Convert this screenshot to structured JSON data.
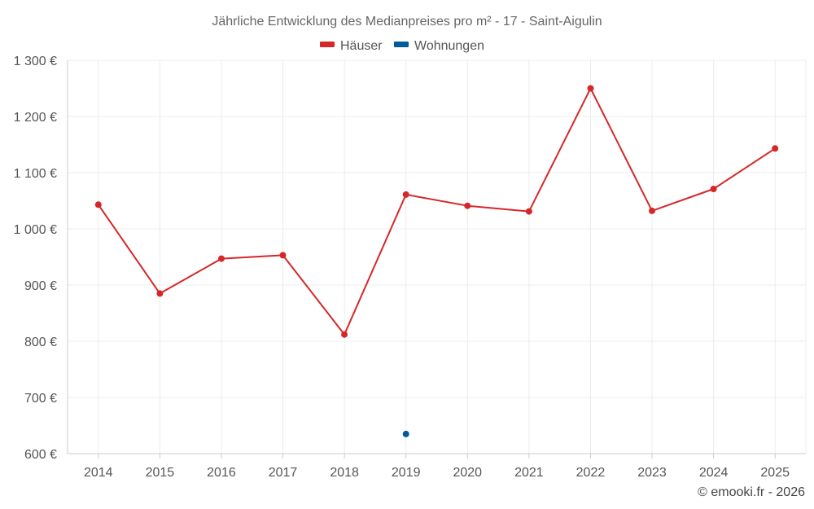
{
  "chart_data": {
    "type": "line",
    "title": "Jährliche Entwicklung des Medianpreises pro m² - 17 - Saint-Aigulin",
    "xlabel": "",
    "ylabel": "",
    "categories": [
      "2014",
      "2015",
      "2016",
      "2017",
      "2018",
      "2019",
      "2020",
      "2021",
      "2022",
      "2023",
      "2024",
      "2025"
    ],
    "ylim": [
      600,
      1300
    ],
    "yticks": [
      600,
      700,
      800,
      900,
      1000,
      1100,
      1200,
      1300
    ],
    "ytick_labels": [
      "600 €",
      "700 €",
      "800 €",
      "900 €",
      "1 000 €",
      "1 100 €",
      "1 200 €",
      "1 300 €"
    ],
    "grid": true,
    "legend_position": "top-center",
    "series": [
      {
        "name": "Häuser",
        "color": "#d62728",
        "values": [
          1043,
          885,
          947,
          953,
          812,
          1061,
          1041,
          1031,
          1250,
          1032,
          1071,
          1143
        ]
      },
      {
        "name": "Wohnungen",
        "color": "#005b96",
        "values": [
          null,
          null,
          null,
          null,
          null,
          635,
          null,
          null,
          null,
          null,
          null,
          null
        ]
      }
    ]
  },
  "footer": {
    "copyright": "© emooki.fr - 2026"
  }
}
